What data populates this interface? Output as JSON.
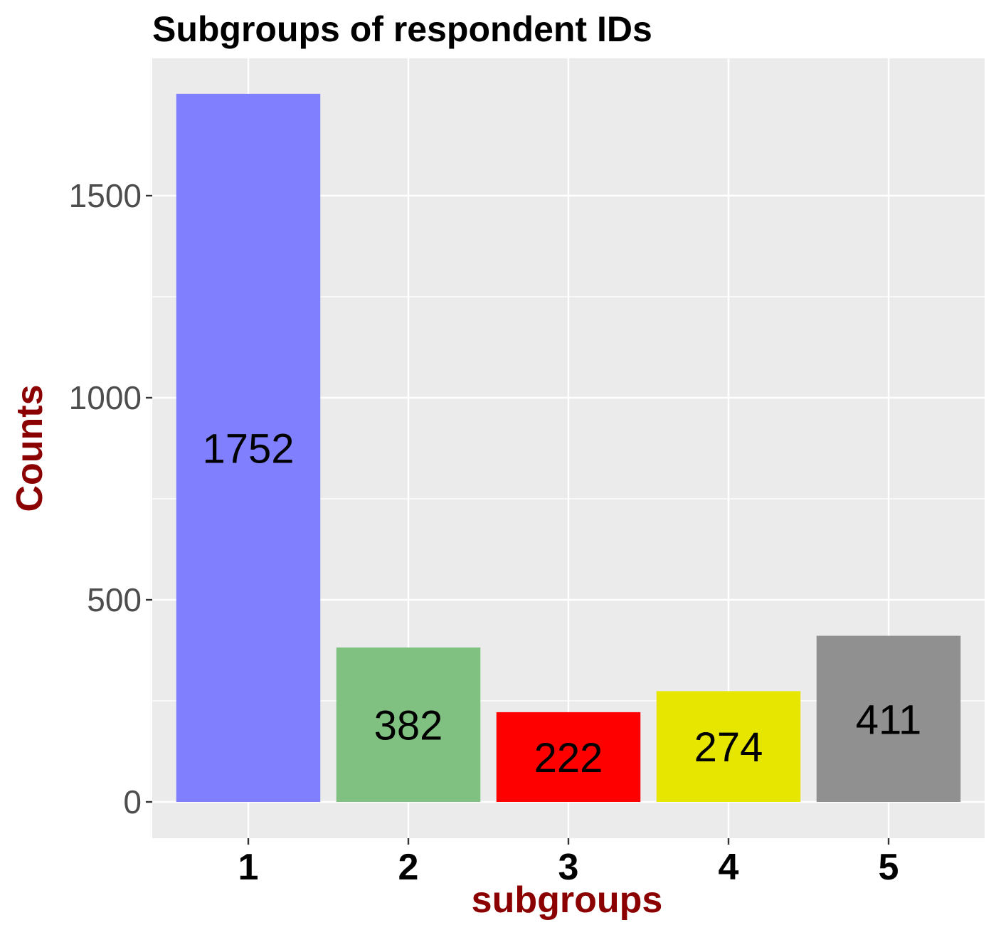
{
  "chart_data": {
    "type": "bar",
    "title": "Subgroups of respondent IDs",
    "xlabel": "subgroups",
    "ylabel": "Counts",
    "categories": [
      "1",
      "2",
      "3",
      "4",
      "5"
    ],
    "values": [
      1752,
      382,
      222,
      274,
      411
    ],
    "data_labels": [
      "1752",
      "382",
      "222",
      "274",
      "411"
    ],
    "colors": [
      "#8080ff",
      "#80c080",
      "#ff0000",
      "#e6e600",
      "#909090"
    ],
    "yticks": [
      0,
      500,
      1000,
      1500
    ],
    "ytick_labels": [
      "0",
      "500",
      "1000",
      "1500"
    ],
    "ylim": [
      -88,
      1840
    ],
    "grid": true,
    "panel_background": "#ebebeb",
    "legend": "none"
  }
}
